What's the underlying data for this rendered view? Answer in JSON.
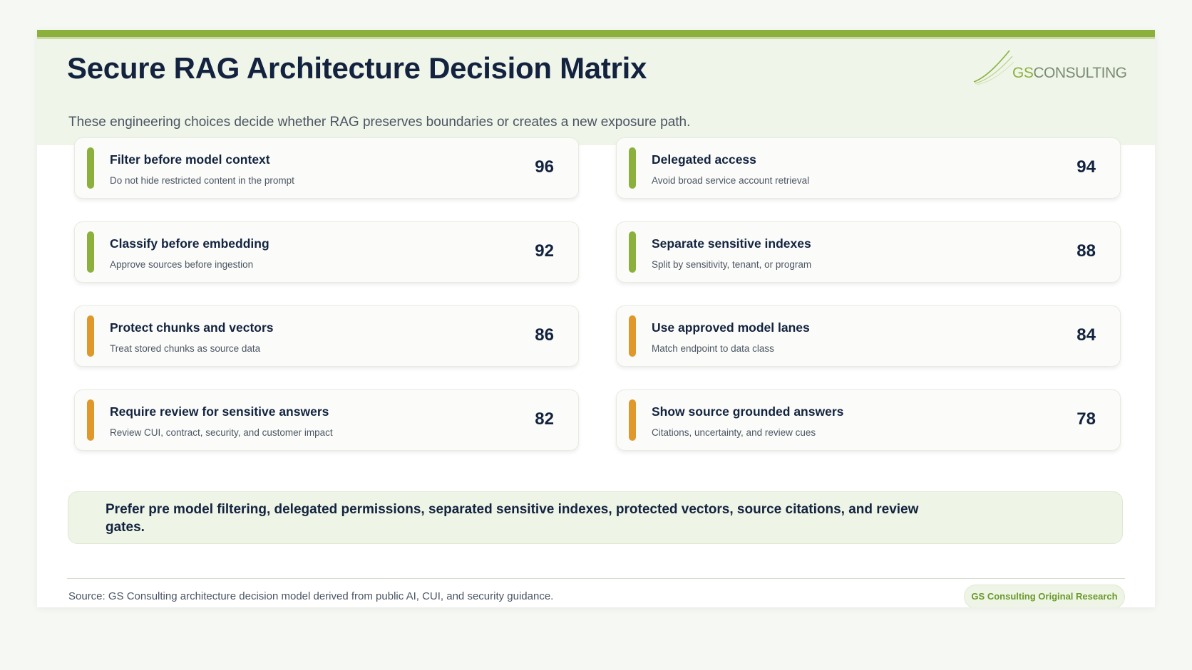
{
  "header": {
    "title": "Secure RAG Architecture Decision Matrix",
    "subtitle": "These engineering choices decide whether RAG preserves boundaries or creates a new exposure path.",
    "logo_text_prefix": "GS",
    "logo_text_suffix": "CONSULTING"
  },
  "colors": {
    "brand_green": "#8bb13c",
    "accent_orange": "#e0982b",
    "navy": "#13233f"
  },
  "cards": [
    {
      "title": "Filter before model context",
      "desc": "Do not hide restricted content in the prompt",
      "score": "96",
      "accent": "green"
    },
    {
      "title": "Delegated access",
      "desc": "Avoid broad service account retrieval",
      "score": "94",
      "accent": "green"
    },
    {
      "title": "Classify before embedding",
      "desc": "Approve sources before ingestion",
      "score": "92",
      "accent": "green"
    },
    {
      "title": "Separate sensitive indexes",
      "desc": "Split by sensitivity, tenant, or program",
      "score": "88",
      "accent": "green"
    },
    {
      "title": "Protect chunks and vectors",
      "desc": "Treat stored chunks as source data",
      "score": "86",
      "accent": "orange"
    },
    {
      "title": "Use approved model lanes",
      "desc": "Match endpoint to data class",
      "score": "84",
      "accent": "orange"
    },
    {
      "title": "Require review for sensitive answers",
      "desc": "Review CUI, contract, security, and customer impact",
      "score": "82",
      "accent": "orange"
    },
    {
      "title": "Show source grounded answers",
      "desc": "Citations, uncertainty, and review cues",
      "score": "78",
      "accent": "orange"
    }
  ],
  "callout": "Prefer pre model filtering, delegated permissions, separated sensitive indexes, protected vectors, source citations, and review gates.",
  "footer": {
    "source": "Source: GS Consulting architecture decision model derived from public AI, CUI, and security guidance.",
    "badge": "GS Consulting Original Research"
  }
}
